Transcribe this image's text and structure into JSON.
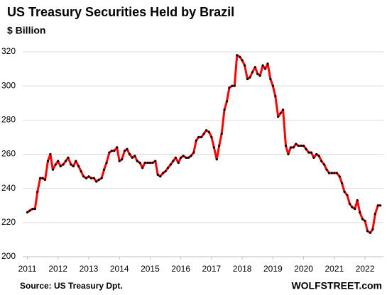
{
  "chart_data": {
    "type": "line",
    "title": "US Treasury Securities Held by Brazil",
    "subtitle": "$ Billion",
    "source": "Source: US Treasury  Dpt.",
    "brand": "WOLFSTREET.com",
    "color": "#ff0000",
    "marker_color": "#000000",
    "grid": true,
    "xlim": [
      2010.85,
      2022.6
    ],
    "ylim": [
      200,
      320
    ],
    "xticks": [
      2011,
      2012,
      2013,
      2014,
      2015,
      2016,
      2017,
      2018,
      2019,
      2020,
      2021,
      2022
    ],
    "yticks": [
      200,
      220,
      240,
      260,
      280,
      300,
      320
    ],
    "x": [
      2011,
      2011.08,
      2011.17,
      2011.25,
      2011.33,
      2011.42,
      2011.5,
      2011.58,
      2011.67,
      2011.75,
      2011.83,
      2011.92,
      2012,
      2012.08,
      2012.17,
      2012.25,
      2012.33,
      2012.42,
      2012.5,
      2012.58,
      2012.67,
      2012.75,
      2012.83,
      2012.92,
      2013,
      2013.08,
      2013.17,
      2013.25,
      2013.33,
      2013.42,
      2013.5,
      2013.58,
      2013.67,
      2013.75,
      2013.83,
      2013.92,
      2014,
      2014.08,
      2014.17,
      2014.25,
      2014.33,
      2014.42,
      2014.5,
      2014.58,
      2014.67,
      2014.75,
      2014.83,
      2014.92,
      2015,
      2015.08,
      2015.17,
      2015.25,
      2015.33,
      2015.42,
      2015.5,
      2015.58,
      2015.67,
      2015.75,
      2015.83,
      2015.92,
      2016,
      2016.08,
      2016.17,
      2016.25,
      2016.33,
      2016.42,
      2016.5,
      2016.58,
      2016.67,
      2016.75,
      2016.83,
      2016.92,
      2017,
      2017.08,
      2017.17,
      2017.25,
      2017.33,
      2017.42,
      2017.5,
      2017.58,
      2017.67,
      2017.75,
      2017.83,
      2017.92,
      2018,
      2018.08,
      2018.17,
      2018.25,
      2018.33,
      2018.42,
      2018.5,
      2018.58,
      2018.67,
      2018.75,
      2018.83,
      2018.92,
      2019,
      2019.08,
      2019.17,
      2019.25,
      2019.33,
      2019.42,
      2019.5,
      2019.58,
      2019.67,
      2019.75,
      2019.83,
      2019.92,
      2020,
      2020.08,
      2020.17,
      2020.25,
      2020.33,
      2020.42,
      2020.5,
      2020.58,
      2020.67,
      2020.75,
      2020.83,
      2020.92,
      2021,
      2021.08,
      2021.17,
      2021.25,
      2021.33,
      2021.42,
      2021.5,
      2021.58,
      2021.67,
      2021.75,
      2021.83,
      2021.92,
      2022,
      2022.08,
      2022.17,
      2022.25,
      2022.33,
      2022.42,
      2022.5
    ],
    "values": [
      226,
      227,
      228,
      228,
      238,
      246,
      246,
      245,
      256,
      260,
      251,
      254,
      256,
      253,
      254,
      256,
      258,
      254,
      253,
      256,
      253,
      250,
      247,
      246,
      247,
      246,
      246,
      244,
      245,
      246,
      251,
      255,
      261,
      262,
      262,
      264,
      256,
      257,
      262,
      263,
      260,
      258,
      259,
      256,
      255,
      252,
      255,
      255,
      255,
      255,
      256,
      248,
      247,
      249,
      250,
      252,
      254,
      256,
      258,
      255,
      258,
      259,
      258,
      258,
      259,
      261,
      268,
      270,
      270,
      272,
      274,
      273,
      270,
      264,
      257,
      265,
      272,
      286,
      291,
      299,
      300,
      300,
      318,
      317,
      315,
      312,
      304,
      305,
      308,
      311,
      307,
      306,
      312,
      310,
      313,
      304,
      300,
      294,
      282,
      284,
      286,
      265,
      260,
      264,
      264,
      266,
      265,
      265,
      265,
      263,
      261,
      261,
      258,
      260,
      259,
      256,
      254,
      251,
      249,
      249,
      249,
      249,
      247,
      243,
      238,
      236,
      231,
      229,
      228,
      233,
      226,
      222,
      221,
      215,
      214,
      216,
      225,
      230,
      230
    ]
  }
}
